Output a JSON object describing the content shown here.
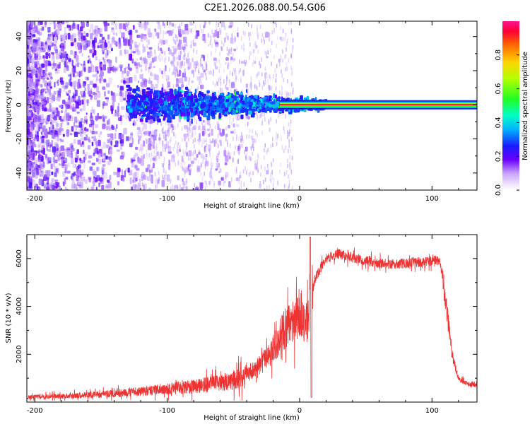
{
  "title": "C2E1.2026.088.00.54.G06",
  "chart_data": [
    {
      "type": "heatmap",
      "name": "spectrogram",
      "xlabel": "Height of straight line (km)",
      "ylabel": "Frequency (Hz)",
      "xlim": [
        -206,
        134
      ],
      "ylim": [
        -50,
        49
      ],
      "xticks": [
        -200,
        -100,
        0,
        100
      ],
      "xtick_labels": [
        "-200",
        "-100",
        "0",
        "100"
      ],
      "yticks": [
        -40,
        -20,
        0,
        20,
        40
      ],
      "ytick_labels": [
        "-40",
        "-20",
        "0",
        "20",
        "40"
      ],
      "colorbar": {
        "label": "Normalized spectral amplitude",
        "range": [
          0,
          1
        ],
        "ticks": [
          0.0,
          0.2,
          0.4,
          0.6,
          0.8
        ],
        "tick_labels": [
          "0.0",
          "0.2",
          "0.4",
          "0.6",
          "0.8"
        ]
      },
      "features": {
        "carrier_line": {
          "frequency_hz": 0,
          "x_start_km": -15,
          "x_end_km": 134,
          "amplitude": 1.0
        },
        "noise_cloud": {
          "x_range_km": [
            -206,
            -20
          ],
          "density": "high for x < -120, tapering toward 0"
        },
        "core_band": {
          "x_range_km": [
            -130,
            20
          ],
          "half_width_hz": [
            8,
            2
          ]
        }
      }
    },
    {
      "type": "line",
      "name": "snr",
      "xlabel": "Height of straight line (km)",
      "ylabel": "SNR (10 * v/v)",
      "xlim": [
        -206,
        134
      ],
      "ylim": [
        0,
        7000
      ],
      "xticks": [
        -200,
        -100,
        0,
        100
      ],
      "xtick_labels": [
        "-200",
        "-100",
        "0",
        "100"
      ],
      "yticks": [
        2000,
        4000,
        6000
      ],
      "ytick_labels": [
        "2000",
        "4000",
        "6000"
      ],
      "color": "#ee3333",
      "envelope": {
        "x": [
          -206,
          -180,
          -150,
          -120,
          -100,
          -80,
          -60,
          -45,
          -35,
          -25,
          -18,
          -12,
          -8,
          -4,
          0,
          6,
          9,
          12,
          20,
          30,
          40,
          50,
          60,
          70,
          80,
          90,
          100,
          105,
          108,
          112,
          115,
          120,
          125,
          134
        ],
        "y": [
          200,
          250,
          320,
          450,
          550,
          650,
          800,
          1000,
          1300,
          1800,
          2400,
          3000,
          3300,
          3500,
          3700,
          3300,
          4500,
          5200,
          6000,
          6200,
          6050,
          5900,
          5800,
          5750,
          5800,
          5850,
          5900,
          5950,
          5300,
          3500,
          2000,
          1000,
          800,
          700
        ]
      },
      "annotations": {
        "dropout_x_km": 9,
        "dropout_min": 200,
        "peak_x_km": 8,
        "peak_value": 6900
      }
    }
  ]
}
